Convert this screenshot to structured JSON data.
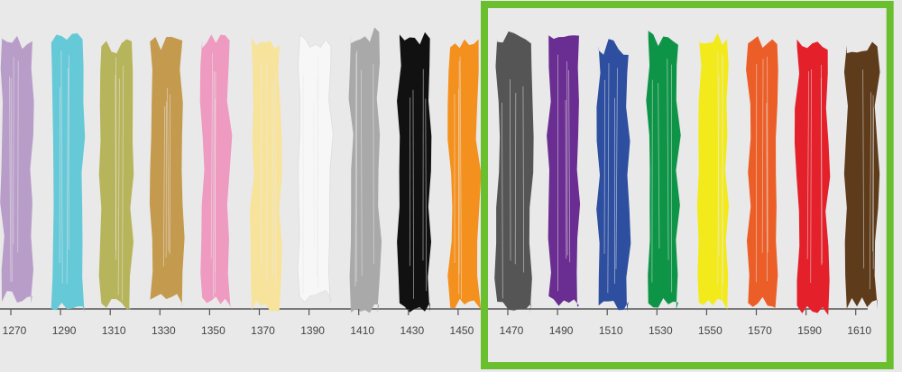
{
  "swatches": [
    {
      "label": 1270,
      "color": "#b89dc9",
      "highlighted": false
    },
    {
      "label": 1290,
      "color": "#66c9d8",
      "highlighted": false
    },
    {
      "label": 1310,
      "color": "#b7b55c",
      "highlighted": false
    },
    {
      "label": 1330,
      "color": "#c49a4e",
      "highlighted": false
    },
    {
      "label": 1350,
      "color": "#ef9ac0",
      "highlighted": false
    },
    {
      "label": 1370,
      "color": "#f8e39c",
      "highlighted": false
    },
    {
      "label": 1390,
      "color": "#f7f7f7",
      "highlighted": false
    },
    {
      "label": 1410,
      "color": "#a9a9a9",
      "highlighted": false
    },
    {
      "label": 1430,
      "color": "#111111",
      "highlighted": false
    },
    {
      "label": 1450,
      "color": "#f4911e",
      "highlighted": false
    },
    {
      "label": 1470,
      "color": "#555555",
      "highlighted": true
    },
    {
      "label": 1490,
      "color": "#6a2d91",
      "highlighted": true
    },
    {
      "label": 1510,
      "color": "#2e4fa0",
      "highlighted": true
    },
    {
      "label": 1530,
      "color": "#0e9447",
      "highlighted": true
    },
    {
      "label": 1550,
      "color": "#f2ea1a",
      "highlighted": true
    },
    {
      "label": 1570,
      "color": "#ec5e27",
      "highlighted": true
    },
    {
      "label": 1590,
      "color": "#e4202a",
      "highlighted": true
    },
    {
      "label": 1610,
      "color": "#5e3c1b",
      "highlighted": true
    }
  ],
  "highlight_color": "#6abf2e"
}
